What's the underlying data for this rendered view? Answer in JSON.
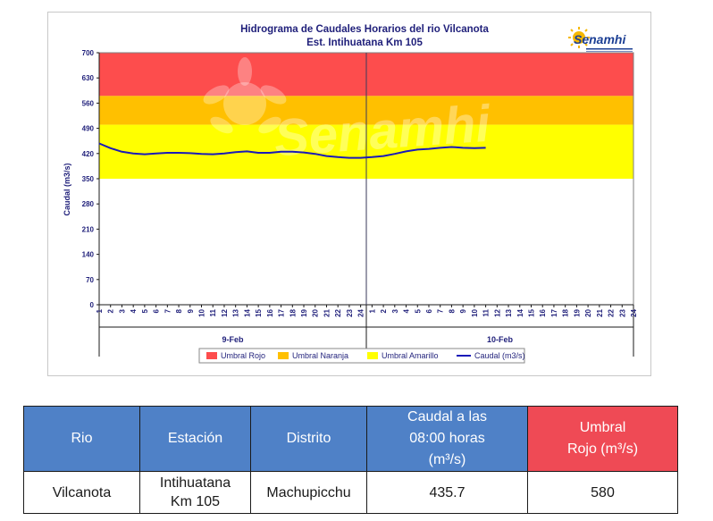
{
  "chart_data": {
    "type": "line",
    "title": "Hidrograma de Caudales Horarios del rio Vilcanota",
    "subtitle": "Est. Intihuatana Km 105",
    "ylabel": "Caudal  (m3/s)",
    "ylim": [
      0,
      700
    ],
    "yticks": [
      0,
      70,
      140,
      210,
      280,
      350,
      420,
      490,
      560,
      630,
      700
    ],
    "x_tick_labels": [
      "1",
      "2",
      "3",
      "4",
      "5",
      "6",
      "7",
      "8",
      "9",
      "10",
      "11",
      "12",
      "13",
      "14",
      "15",
      "16",
      "17",
      "18",
      "19",
      "20",
      "21",
      "22",
      "23",
      "24",
      "1",
      "2",
      "3",
      "4",
      "5",
      "6",
      "7",
      "8",
      "9",
      "10",
      "11",
      "12",
      "13",
      "14",
      "15",
      "16",
      "17",
      "18",
      "19",
      "20",
      "21",
      "22",
      "23",
      "24"
    ],
    "day_labels": [
      "9-Feb",
      "10-Feb"
    ],
    "bands": [
      {
        "name": "Umbral Rojo",
        "from": 580,
        "to": 700,
        "color": "#fd4d4d"
      },
      {
        "name": "Umbral Naranja",
        "from": 500,
        "to": 580,
        "color": "#ffc000"
      },
      {
        "name": "Umbral Amarillo",
        "from": 350,
        "to": 500,
        "color": "#ffff00"
      }
    ],
    "series": [
      {
        "name": "Caudal (m3/s)",
        "color": "#1a1ab8",
        "values": [
          448,
          435,
          425,
          420,
          418,
          420,
          422,
          422,
          421,
          419,
          418,
          420,
          424,
          426,
          422,
          422,
          425,
          425,
          423,
          419,
          413,
          410,
          408,
          408,
          410,
          413,
          419,
          426,
          431,
          433,
          436,
          438,
          436,
          435,
          436
        ]
      }
    ],
    "legend": [
      "Umbral Rojo",
      "Umbral Naranja",
      "Umbral Amarillo",
      "Caudal (m3/s)"
    ],
    "legend_position": "bottom",
    "grid": false
  },
  "watermark": "Senamhi",
  "logo": {
    "text": "Senamhi",
    "color": "#1c3f94",
    "sun_color": "#f5b800"
  },
  "table": {
    "headers": [
      "Rio",
      "Estación",
      "Distrito",
      "Caudal a las 08:00 horas (m³/s)",
      "Umbral Rojo (m³/s)"
    ],
    "header_color": "#4f81c7",
    "highlight_color": "#ef4a55",
    "row": [
      "Vilcanota",
      "Intihuatana Km 105",
      "Machupicchu",
      "435.7",
      "580"
    ]
  }
}
